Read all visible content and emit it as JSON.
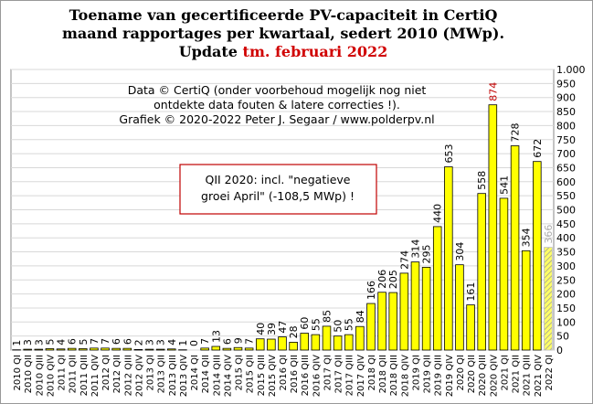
{
  "chart_data": {
    "type": "bar",
    "title_lines": [
      "Toename van gecertificeerde PV-capaciteit in CertiQ",
      "maand rapportages per kwartaal, sedert 2010 (MWp)."
    ],
    "title_update": "Update",
    "title_period": "tm. februari 2022",
    "source_lines": [
      "Data © CertiQ (onder voorbehoud mogelijk  nog niet",
      "ontdekte data fouten & latere correcties !).",
      "Grafiek  © 2020-2022 Peter J. Segaar / www.polderpv.nl"
    ],
    "note_lines": [
      "QII 2020:  incl. \"negatieve",
      "groei April\"  (-108,5 MWp)  !"
    ],
    "categories": [
      "2010 QI",
      "2010 QII",
      "2010 QIII",
      "2010 QIV",
      "2011 QI",
      "2011 QII",
      "2011 QIII",
      "2011 QIV",
      "2012 QI",
      "2012 QII",
      "2012 QIII",
      "2012 QIV",
      "2013 QI",
      "2013 QII",
      "2013 QIII",
      "2013 QIV",
      "2014 QI",
      "2014 QII",
      "2014 QIII",
      "2014 QIV",
      "2015 QI",
      "2015 QII",
      "2015 QIII",
      "2015 QIV",
      "2016 QI",
      "2016 QII",
      "2016 QIII",
      "2016 QIV",
      "2017 QI",
      "2017 QII",
      "2017 QIII",
      "2017 QIV",
      "2018 QI",
      "2018 QII",
      "2018 QIII",
      "2018 QIV",
      "2019 QI",
      "2019 QII",
      "2019 QIII",
      "2019 QIV",
      "2020 QI",
      "2020 QII",
      "2020 QIII",
      "2020 QIV",
      "2021 QI",
      "2021 QII",
      "2021 QIII",
      "2021 QIV",
      "2022 QI"
    ],
    "values": [
      1,
      3,
      3,
      5,
      4,
      6,
      5,
      7,
      7,
      6,
      6,
      2,
      3,
      3,
      4,
      1,
      0,
      7,
      13,
      6,
      9,
      7,
      40,
      39,
      47,
      28,
      60,
      55,
      85,
      50,
      55,
      84,
      166,
      206,
      205,
      274,
      314,
      295,
      440,
      653,
      304,
      161,
      558,
      874,
      541,
      728,
      354,
      672,
      366
    ],
    "color": "#ffff00",
    "hatched_category": "2022 QI",
    "hatched_label_color": "#aaaaaa",
    "highlight_category": "2020 QIV",
    "highlight_label_color": "#c00000",
    "ylim": [
      0,
      1000
    ],
    "yticks": [
      0,
      50,
      100,
      150,
      200,
      250,
      300,
      350,
      400,
      450,
      500,
      550,
      600,
      650,
      700,
      750,
      800,
      850,
      900,
      950,
      {
        "value": 1000,
        "label": "1.000"
      }
    ],
    "grid": true
  }
}
